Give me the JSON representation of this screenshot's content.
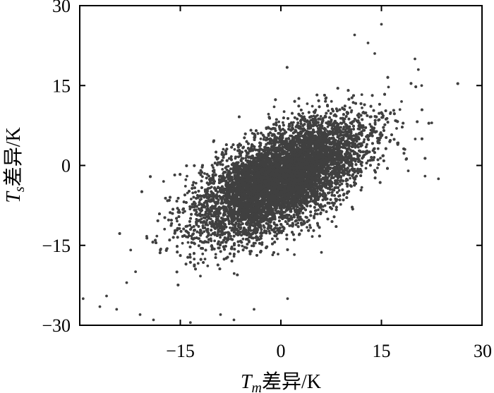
{
  "chart_data": {
    "type": "scatter",
    "title": "",
    "xlabel": {
      "var": "T",
      "sub": "m",
      "text": "差异/K"
    },
    "ylabel": {
      "var": "T",
      "sub": "s",
      "text": "差异/K"
    },
    "xlim": [
      -30,
      30
    ],
    "ylim": [
      -30,
      30
    ],
    "xticks": [
      -15,
      0,
      15,
      30
    ],
    "yticks": [
      -30,
      -15,
      0,
      15,
      30
    ],
    "xtick_labels": [
      "−15",
      "0",
      "15",
      "30"
    ],
    "ytick_labels": [
      "−30",
      "−15",
      "0",
      "15",
      "30"
    ],
    "grid": false,
    "legend": "none",
    "point_color": "#404040",
    "cloud": {
      "center": [
        0,
        -2.5
      ],
      "sd_major": 7.4,
      "sd_minor": 3.6,
      "angle_deg": 40
    },
    "outliers": [
      [
        -30.5,
        -27.5
      ],
      [
        -29.5,
        -25
      ],
      [
        -27,
        -26.5
      ],
      [
        -26,
        -24.5
      ],
      [
        -24.5,
        -27
      ],
      [
        -23,
        -22
      ],
      [
        -21,
        -28
      ],
      [
        -19,
        -29
      ],
      [
        -17.5,
        -3
      ],
      [
        -14,
        -2
      ],
      [
        -13.5,
        -29.5
      ],
      [
        -9,
        -28
      ],
      [
        -7,
        -29
      ],
      [
        -4,
        -27
      ],
      [
        -3,
        5
      ],
      [
        -1,
        11
      ],
      [
        1,
        -25
      ],
      [
        11,
        24.5
      ],
      [
        13,
        23
      ],
      [
        14,
        21
      ],
      [
        15,
        26.5
      ],
      [
        18,
        12
      ],
      [
        18.5,
        3
      ],
      [
        19,
        -1
      ],
      [
        20,
        20
      ],
      [
        20.5,
        18
      ],
      [
        21,
        15
      ],
      [
        21.5,
        -2
      ],
      [
        22.5,
        8
      ],
      [
        23.5,
        -2.5
      ]
    ]
  }
}
